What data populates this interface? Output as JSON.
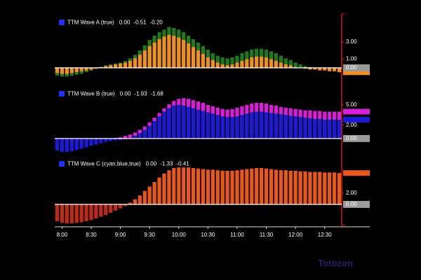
{
  "chart_data": [
    {
      "type": "bar",
      "title": "TTM Wave A (true)",
      "legend_values": [
        {
          "text": "0.00",
          "color": "#ffffff"
        },
        {
          "text": "-0.51",
          "color": "#f0901c"
        },
        {
          "text": "-0.20",
          "color": "#2a9a2a"
        }
      ],
      "x": [
        475,
        480,
        485,
        490,
        495,
        500,
        505,
        510,
        515,
        520,
        525,
        530,
        535,
        540,
        545,
        550,
        555,
        560,
        565,
        570,
        575,
        580,
        585,
        590,
        595,
        600,
        605,
        610,
        615,
        620,
        625,
        630,
        635,
        640,
        645,
        650,
        655,
        660,
        665,
        670,
        675,
        680,
        685,
        690,
        695,
        700,
        705,
        710,
        715,
        720,
        725,
        730,
        735,
        740,
        745,
        750,
        755,
        760,
        765
      ],
      "series": [
        {
          "color": "#1f7a1f",
          "values": [
            -0.9,
            -1.0,
            -1.0,
            -0.9,
            -0.8,
            -0.7,
            -0.5,
            -0.3,
            -0.1,
            0.1,
            0.3,
            0.4,
            0.5,
            0.6,
            0.8,
            1.1,
            1.5,
            2.0,
            2.6,
            3.2,
            3.7,
            4.1,
            4.4,
            4.7,
            4.6,
            4.4,
            4.1,
            3.7,
            3.3,
            2.9,
            2.5,
            2.1,
            1.7,
            1.4,
            1.2,
            1.1,
            1.2,
            1.4,
            1.7,
            1.9,
            2.1,
            2.2,
            2.2,
            2.1,
            1.9,
            1.7,
            1.4,
            1.1,
            0.9,
            0.6,
            0.4,
            0.2,
            0.1,
            0.0,
            -0.1,
            -0.1,
            -0.2,
            -0.2,
            -0.2
          ]
        },
        {
          "color": "#f0901c",
          "values": [
            -0.6,
            -0.7,
            -0.7,
            -0.6,
            -0.5,
            -0.4,
            -0.3,
            -0.2,
            -0.1,
            0.1,
            0.2,
            0.3,
            0.4,
            0.5,
            0.6,
            0.8,
            1.1,
            1.5,
            2.0,
            2.5,
            2.9,
            3.3,
            3.6,
            3.8,
            3.7,
            3.5,
            3.2,
            2.8,
            2.4,
            2.0,
            1.6,
            1.2,
            0.9,
            0.6,
            0.4,
            0.3,
            0.4,
            0.6,
            0.8,
            1.0,
            1.2,
            1.3,
            1.3,
            1.2,
            1.0,
            0.8,
            0.6,
            0.4,
            0.3,
            0.1,
            0.0,
            -0.1,
            -0.2,
            -0.2,
            -0.3,
            -0.3,
            -0.4,
            -0.4,
            -0.51
          ]
        }
      ],
      "ylim": [
        -1.7,
        6.2
      ],
      "yticks": [
        {
          "value": 3,
          "label": "3.00"
        },
        {
          "value": 1,
          "label": "1.00"
        },
        {
          "value": 0,
          "label": "0.00"
        }
      ]
    },
    {
      "type": "bar",
      "title": "TTM Wave B (true)",
      "legend_values": [
        {
          "text": "0.00",
          "color": "#ffffff"
        },
        {
          "text": "-1.93",
          "color": "#3344ff"
        },
        {
          "text": "-1.68",
          "color": "#e020e0"
        }
      ],
      "x": [
        475,
        480,
        485,
        490,
        495,
        500,
        505,
        510,
        515,
        520,
        525,
        530,
        535,
        540,
        545,
        550,
        555,
        560,
        565,
        570,
        575,
        580,
        585,
        590,
        595,
        600,
        605,
        610,
        615,
        620,
        625,
        630,
        635,
        640,
        645,
        650,
        655,
        660,
        665,
        670,
        675,
        680,
        685,
        690,
        695,
        700,
        705,
        710,
        715,
        720,
        725,
        730,
        735,
        740,
        745,
        750,
        755,
        760,
        765
      ],
      "series": [
        {
          "color": "#d81ed8",
          "values": [
            -0.8,
            -0.9,
            -0.9,
            -0.8,
            -0.7,
            -0.6,
            -0.5,
            -0.4,
            -0.3,
            -0.2,
            -0.1,
            0.0,
            0.1,
            0.2,
            0.4,
            0.6,
            0.9,
            1.3,
            1.8,
            2.4,
            3.1,
            3.8,
            4.5,
            5.1,
            5.6,
            5.9,
            6.0,
            5.9,
            5.7,
            5.5,
            5.3,
            5.0,
            4.8,
            4.6,
            4.4,
            4.3,
            4.4,
            4.6,
            4.8,
            5.0,
            5.2,
            5.3,
            5.3,
            5.2,
            5.0,
            4.9,
            4.7,
            4.6,
            4.5,
            4.4,
            4.3,
            4.2,
            4.2,
            4.1,
            4.1,
            4.0,
            4.0,
            4.0,
            4.0
          ]
        },
        {
          "color": "#1a1ad8",
          "values": [
            -1.8,
            -2.0,
            -2.0,
            -1.9,
            -1.7,
            -1.5,
            -1.3,
            -1.1,
            -0.9,
            -0.7,
            -0.5,
            -0.4,
            -0.3,
            -0.2,
            -0.1,
            0.1,
            0.4,
            0.8,
            1.3,
            1.9,
            2.6,
            3.3,
            4.0,
            4.5,
            4.9,
            5.0,
            4.9,
            4.7,
            4.5,
            4.3,
            4.1,
            3.9,
            3.7,
            3.5,
            3.3,
            3.2,
            3.2,
            3.3,
            3.5,
            3.7,
            3.9,
            4.0,
            4.0,
            3.9,
            3.8,
            3.7,
            3.6,
            3.5,
            3.4,
            3.3,
            3.2,
            3.1,
            3.0,
            2.9,
            2.9,
            2.8,
            2.8,
            2.8,
            2.8
          ]
        }
      ],
      "ylim": [
        -2.3,
        7.9
      ],
      "yticks": [
        {
          "value": 5,
          "label": "5.00"
        },
        {
          "value": 2,
          "label": "2.00"
        },
        {
          "value": 0,
          "label": "0.00"
        }
      ]
    },
    {
      "type": "bar",
      "title": "TTM Wave C (cyan,blue,true)",
      "legend_values": [
        {
          "text": "0.00",
          "color": "#ffffff"
        },
        {
          "text": "-1.33",
          "color": "#f0601c"
        },
        {
          "text": "-0.41",
          "color": "#d02020"
        }
      ],
      "x": [
        475,
        480,
        485,
        490,
        495,
        500,
        505,
        510,
        515,
        520,
        525,
        530,
        535,
        540,
        545,
        550,
        555,
        560,
        565,
        570,
        575,
        580,
        585,
        590,
        595,
        600,
        605,
        610,
        615,
        620,
        625,
        630,
        635,
        640,
        645,
        650,
        655,
        660,
        665,
        670,
        675,
        680,
        685,
        690,
        695,
        700,
        705,
        710,
        715,
        720,
        725,
        730,
        735,
        740,
        745,
        750,
        755,
        760,
        765
      ],
      "series": [
        {
          "color": "#e8581c",
          "negative_color": "#c02a1a",
          "values": [
            -3.0,
            -3.3,
            -3.4,
            -3.4,
            -3.3,
            -3.2,
            -3.0,
            -2.8,
            -2.5,
            -2.2,
            -1.9,
            -1.5,
            -1.1,
            -0.7,
            -0.3,
            0.3,
            0.9,
            1.6,
            2.4,
            3.2,
            4.0,
            4.8,
            5.5,
            6.1,
            6.5,
            6.6,
            6.6,
            6.6,
            6.5,
            6.4,
            6.3,
            6.2,
            6.2,
            6.1,
            6.0,
            6.0,
            6.0,
            6.1,
            6.2,
            6.3,
            6.4,
            6.5,
            6.5,
            6.4,
            6.3,
            6.2,
            6.1,
            6.1,
            6.0,
            6.0,
            5.9,
            5.9,
            5.8,
            5.8,
            5.8,
            5.7,
            5.7,
            5.7,
            5.6
          ]
        }
      ],
      "ylim": [
        -3.75,
        8.75
      ],
      "yticks": [
        {
          "value": 2,
          "label": "2.00"
        },
        {
          "value": 0,
          "label": "0.00"
        }
      ],
      "xlim": [
        472.5,
        767.5
      ],
      "xticks": [
        {
          "value": 480,
          "label": "8:00"
        },
        {
          "value": 510,
          "label": "8:30"
        },
        {
          "value": 540,
          "label": "9:00"
        },
        {
          "value": 570,
          "label": "9:30"
        },
        {
          "value": 600,
          "label": "10:00"
        },
        {
          "value": 630,
          "label": "10:30"
        },
        {
          "value": 660,
          "label": "11:00"
        },
        {
          "value": 690,
          "label": "11:30"
        },
        {
          "value": 720,
          "label": "12:00"
        },
        {
          "value": 750,
          "label": "12:30"
        }
      ]
    }
  ],
  "watermark": "Totozon"
}
